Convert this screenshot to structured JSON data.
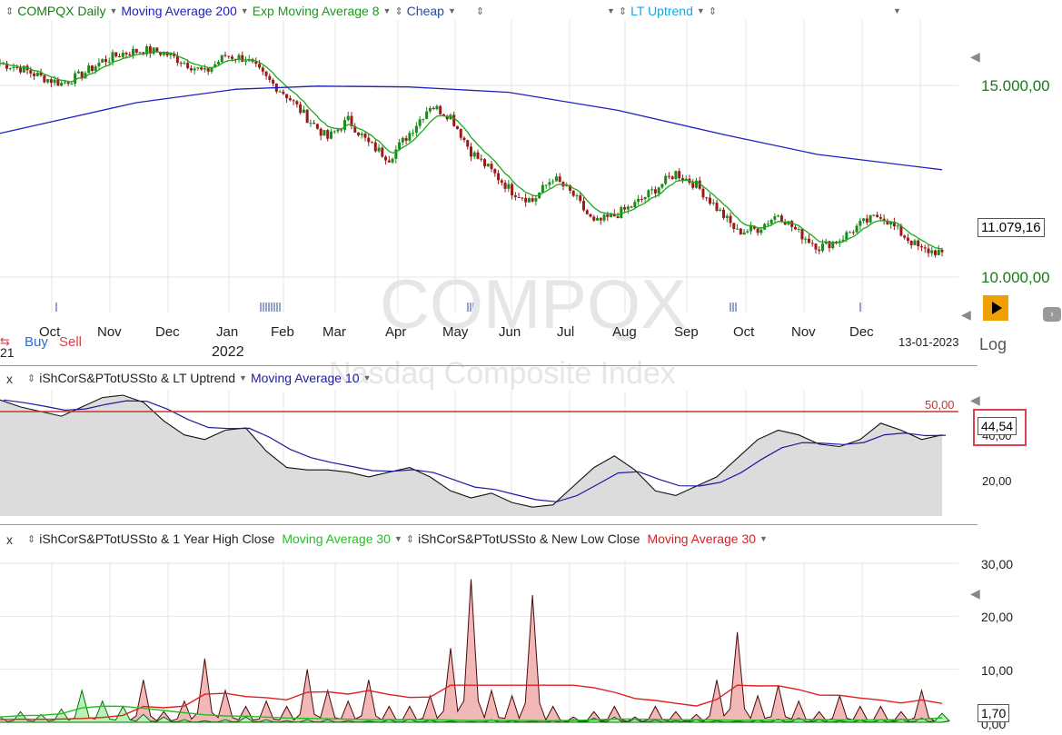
{
  "main": {
    "symbol": "COMPQX Daily",
    "indicators": [
      {
        "label": "Moving Average 200",
        "color": "#2020c0"
      },
      {
        "label": "Exp Moving Average 8",
        "color": "#1a9a1a"
      },
      {
        "label": "Cheap",
        "color": "#2a4a9a"
      },
      {
        "label": "",
        "color": "#2a4a9a"
      },
      {
        "label": "LT Uptrend",
        "color": "#19a3e6"
      },
      {
        "label": "",
        "color": "#2a4a9a"
      }
    ],
    "price_levels": [
      "15.000,00",
      "10.000,00"
    ],
    "current_price": "11.079,16",
    "months": [
      "Oct",
      "Nov",
      "Dec",
      "Jan",
      "Feb",
      "Mar",
      "Apr",
      "May",
      "Jun",
      "Jul",
      "Aug",
      "Sep",
      "Oct",
      "Nov",
      "Dec"
    ],
    "year_label": "2022",
    "partial_left": "21",
    "date_label": "13-01-2023",
    "log_label": "Log",
    "buy_label": "Buy",
    "sell_label": "Sell",
    "watermark_symbol": "COMPQX",
    "watermark_name": "Nasdaq Composite Index",
    "price_series": [
      15580,
      15450,
      15220,
      15050,
      15280,
      15640,
      15840,
      15920,
      15850,
      15600,
      15330,
      15780,
      15700,
      15180,
      14740,
      14150,
      13620,
      14100,
      13480,
      13100,
      13760,
      14480,
      14200,
      13270,
      12760,
      12240,
      11990,
      12600,
      12130,
      11400,
      11600,
      11900,
      12300,
      12720,
      12400,
      11800,
      11180,
      11260,
      11650,
      11150,
      10780,
      10980,
      11370,
      11630,
      11140,
      10700,
      10650
    ]
  },
  "panel2": {
    "label": "iShCorS&PTotUSSto & LT Uptrend",
    "ma_label": "Moving Average 10",
    "reference": "50,00",
    "levels": [
      "40,00",
      "20,00"
    ],
    "current": "44,54",
    "series": [
      55,
      52,
      50,
      48,
      52,
      56,
      57,
      54,
      46,
      40,
      38,
      42,
      43,
      33,
      26,
      25,
      25,
      24,
      22,
      24,
      26,
      22,
      16,
      13,
      15,
      11,
      9,
      10,
      18,
      26,
      31,
      25,
      16,
      14,
      18,
      22,
      30,
      38,
      42,
      40,
      36,
      35,
      38,
      45,
      42,
      38,
      40
    ]
  },
  "panel3": {
    "label1": "iShCorS&PTotUSSto & 1 Year High Close",
    "ma1_label": "Moving Average 30",
    "label2": "iShCorS&PTotUSSto & New Low Close",
    "ma2_label": "Moving Average 30",
    "levels": [
      "30,00",
      "20,00",
      "10,00",
      "0,00"
    ],
    "current": "1,70",
    "high_series": [
      1,
      2,
      1.5,
      2.5,
      6,
      4,
      3,
      1.5,
      1,
      0.5,
      0.3,
      0.5,
      1,
      0.5,
      0.3,
      0.5,
      0.5,
      0.3,
      0.2,
      0.5,
      0.6,
      0.4,
      0.2,
      0.1,
      0.5,
      0.3,
      0.2,
      0.3,
      0.5,
      0.8,
      1,
      0.6,
      0.4,
      0.3,
      0.5,
      0.3,
      0.2,
      0.4,
      0.6,
      0.8,
      0.5,
      0.3,
      0.4,
      0.5,
      0.6,
      0.8,
      1.7
    ],
    "low_series": [
      0.5,
      0.8,
      0.5,
      0.8,
      1,
      1.5,
      2.5,
      8,
      2,
      4,
      12,
      6,
      3,
      4,
      3,
      10,
      6,
      4,
      8,
      3,
      3,
      5,
      14,
      27,
      6,
      5,
      24,
      3,
      1,
      2,
      3,
      1,
      3,
      2,
      1.5,
      8,
      17,
      5,
      7,
      4,
      2,
      5,
      3,
      3,
      2,
      6,
      1.5
    ]
  }
}
